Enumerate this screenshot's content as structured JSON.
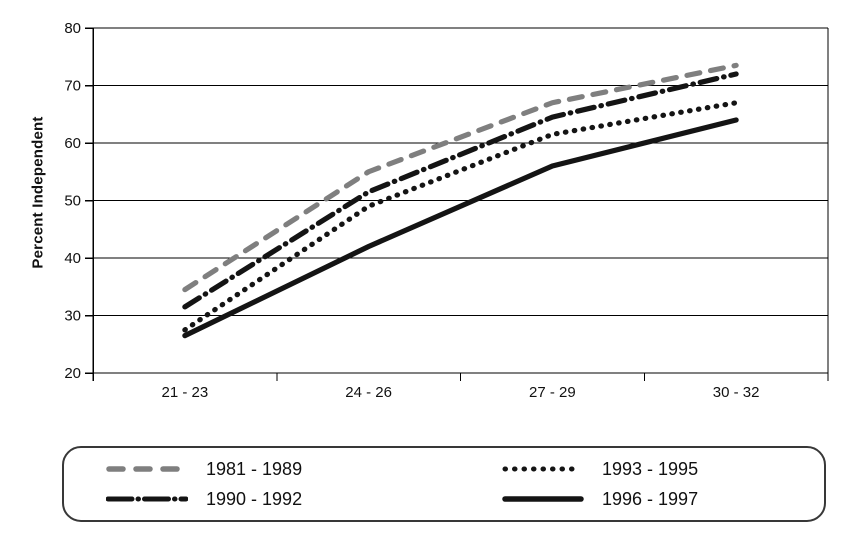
{
  "chart_data": {
    "type": "line",
    "title": "",
    "xlabel": "",
    "ylabel": "Percent Independent",
    "categories": [
      "21 - 23",
      "24 - 26",
      "27 - 29",
      "30 - 32"
    ],
    "ylim": [
      20,
      80
    ],
    "yticks": [
      20,
      30,
      40,
      50,
      60,
      70,
      80
    ],
    "grid": "horizontal",
    "legend_position": "bottom",
    "series": [
      {
        "name": "1981 - 1989",
        "style": "dashed",
        "color": "#7f7f7f",
        "values": [
          34.5,
          55.0,
          67.0,
          73.5
        ]
      },
      {
        "name": "1990 - 1992",
        "style": "dashdot",
        "color": "#141414",
        "values": [
          31.5,
          51.5,
          64.5,
          72.0
        ]
      },
      {
        "name": "1993 - 1995",
        "style": "dotted",
        "color": "#141414",
        "values": [
          27.5,
          49.0,
          61.5,
          67.0
        ]
      },
      {
        "name": "1996 - 1997",
        "style": "solid",
        "color": "#141414",
        "values": [
          26.5,
          42.0,
          56.0,
          64.0
        ]
      }
    ]
  }
}
